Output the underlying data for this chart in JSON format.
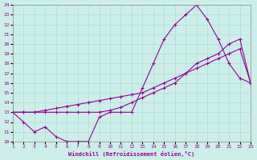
{
  "xlabel": "Windchill (Refroidissement éolien,°C)",
  "bg_color": "#cceee8",
  "grid_color": "#aadddd",
  "line_color": "#990099",
  "xmin": 1,
  "xmax": 23,
  "ymin": 10,
  "ymax": 24,
  "line1_x": [
    1,
    2,
    3,
    4,
    5,
    6,
    7,
    8,
    9,
    10,
    11,
    12,
    13,
    14,
    15,
    16,
    17,
    18,
    19,
    20,
    21,
    22,
    23
  ],
  "line1_y": [
    13,
    12,
    11,
    11.5,
    10.5,
    10,
    10,
    10,
    12.5,
    13,
    13,
    13,
    15.5,
    18,
    20.5,
    22,
    23,
    24,
    22.5,
    20.5,
    18,
    16.5,
    16
  ],
  "line2_x": [
    1,
    2,
    3,
    4,
    5,
    6,
    7,
    8,
    9,
    10,
    11,
    12,
    13,
    14,
    15,
    16,
    17,
    18,
    19,
    20,
    21,
    22,
    23
  ],
  "line2_y": [
    13,
    13,
    13,
    13,
    13,
    13,
    13,
    13,
    13,
    13.2,
    13.5,
    14,
    14.5,
    15,
    15.5,
    16,
    17,
    18,
    18.5,
    19,
    20,
    20.5,
    16
  ],
  "line3_x": [
    1,
    2,
    3,
    4,
    5,
    6,
    7,
    8,
    9,
    10,
    11,
    12,
    13,
    14,
    15,
    16,
    17,
    18,
    19,
    20,
    21,
    22,
    23
  ],
  "line3_y": [
    13,
    13,
    13,
    13.2,
    13.4,
    13.6,
    13.8,
    14,
    14.2,
    14.4,
    14.6,
    14.8,
    15,
    15.5,
    16,
    16.5,
    17,
    17.5,
    18,
    18.5,
    19,
    19.5,
    16
  ]
}
